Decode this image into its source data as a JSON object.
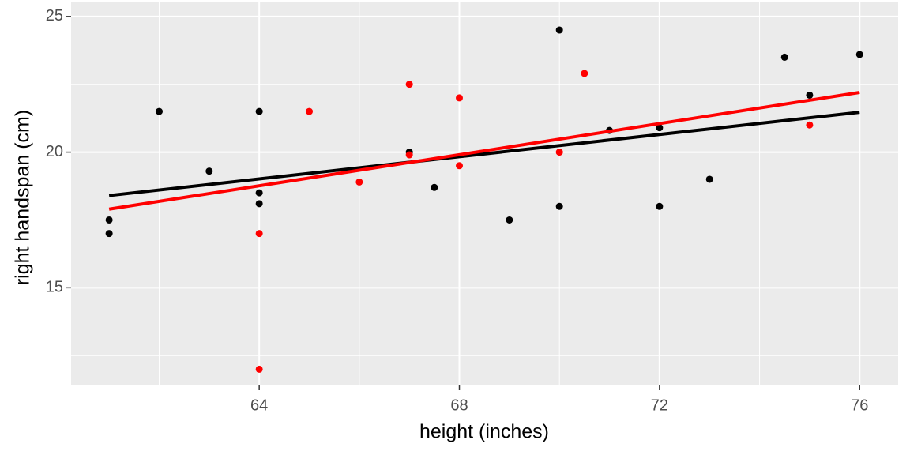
{
  "chart_data": {
    "type": "scatter",
    "x_label": "height (inches)",
    "y_label": "right handspan (cm)",
    "xlim": [
      60.24,
      76.77
    ],
    "ylim": [
      11.4,
      25.52
    ],
    "xticks": [
      64,
      68,
      72,
      76
    ],
    "yticks": [
      15,
      20,
      25
    ],
    "x_minor_ticks": [
      62,
      66,
      70,
      74
    ],
    "y_minor_ticks": [
      12.5,
      17.5,
      22.5
    ],
    "grid": true,
    "series": [
      {
        "color": "#000000",
        "x": [
          61,
          61,
          62,
          63,
          64,
          64,
          64,
          67,
          67.5,
          69,
          70,
          70,
          71,
          72,
          72,
          73,
          74.5,
          75,
          76
        ],
        "values": [
          17.5,
          17.0,
          21.5,
          19.3,
          21.5,
          18.5,
          18.1,
          20.0,
          18.7,
          17.5,
          24.5,
          18.0,
          20.8,
          20.9,
          18.0,
          19.0,
          23.5,
          22.1,
          23.6
        ]
      },
      {
        "color": "#ff0000",
        "x": [
          64,
          64,
          65,
          66,
          67,
          67,
          68,
          68,
          70,
          70.5,
          75
        ],
        "values": [
          17.0,
          12.0,
          21.5,
          18.9,
          22.5,
          19.9,
          22.0,
          19.5,
          20.0,
          22.9,
          21.0
        ]
      }
    ],
    "lines": [
      {
        "color": "#000000",
        "x": [
          61,
          76
        ],
        "values": [
          18.4,
          21.47
        ]
      },
      {
        "color": "#ff0000",
        "x": [
          61,
          76
        ],
        "values": [
          17.9,
          22.2
        ]
      }
    ]
  }
}
